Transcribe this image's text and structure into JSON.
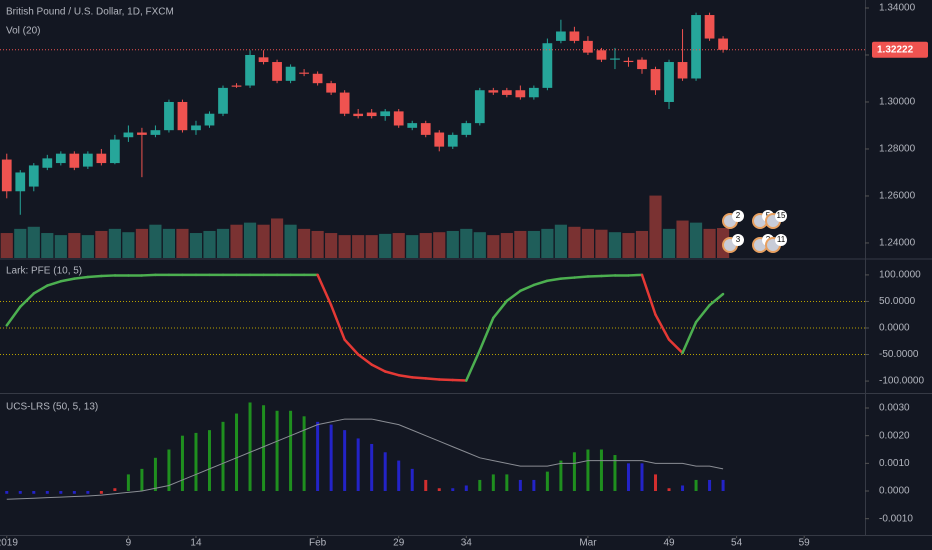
{
  "chart_data": [
    {
      "type": "candlestick",
      "title": "British Pound / U.S. Dollar, 1D, FXCM",
      "x": [
        0,
        1,
        2,
        3,
        4,
        5,
        6,
        7,
        8,
        9,
        10,
        11,
        12,
        13,
        14,
        15,
        16,
        17,
        18,
        19,
        20,
        21,
        22,
        23,
        24,
        25,
        26,
        27,
        28,
        29,
        30,
        31,
        32,
        33,
        34,
        35,
        36,
        37,
        38,
        39,
        40,
        41,
        42,
        43,
        44,
        45,
        46,
        47,
        48,
        49,
        50,
        51,
        52,
        53
      ],
      "open": [
        1.2755,
        1.262,
        1.264,
        1.272,
        1.274,
        1.278,
        1.2725,
        1.278,
        1.274,
        1.285,
        1.287,
        1.286,
        1.288,
        1.3,
        1.288,
        1.29,
        1.295,
        1.307,
        1.307,
        1.319,
        1.317,
        1.309,
        1.3125,
        1.312,
        1.308,
        1.304,
        1.295,
        1.2955,
        1.294,
        1.296,
        1.289,
        1.291,
        1.287,
        1.281,
        1.286,
        1.291,
        1.305,
        1.305,
        1.305,
        1.302,
        1.306,
        1.326,
        1.33,
        1.326,
        1.322,
        1.318,
        1.3175,
        1.318,
        1.314,
        1.3,
        1.317,
        1.31,
        1.337,
        1.327
      ],
      "high": [
        1.278,
        1.271,
        1.274,
        1.2775,
        1.279,
        1.279,
        1.279,
        1.28,
        1.286,
        1.29,
        1.289,
        1.29,
        1.301,
        1.301,
        1.292,
        1.296,
        1.307,
        1.308,
        1.322,
        1.322,
        1.318,
        1.316,
        1.314,
        1.313,
        1.309,
        1.305,
        1.297,
        1.297,
        1.297,
        1.297,
        1.292,
        1.292,
        1.288,
        1.287,
        1.292,
        1.306,
        1.306,
        1.306,
        1.307,
        1.307,
        1.327,
        1.335,
        1.332,
        1.328,
        1.323,
        1.323,
        1.319,
        1.319,
        1.315,
        1.318,
        1.331,
        1.338,
        1.338,
        1.328
      ],
      "low": [
        1.259,
        1.252,
        1.262,
        1.271,
        1.273,
        1.271,
        1.2715,
        1.273,
        1.2735,
        1.283,
        1.268,
        1.285,
        1.287,
        1.287,
        1.286,
        1.289,
        1.294,
        1.306,
        1.306,
        1.316,
        1.308,
        1.308,
        1.311,
        1.307,
        1.303,
        1.294,
        1.293,
        1.293,
        1.292,
        1.289,
        1.288,
        1.285,
        1.279,
        1.28,
        1.285,
        1.29,
        1.303,
        1.302,
        1.301,
        1.301,
        1.305,
        1.325,
        1.325,
        1.32,
        1.317,
        1.314,
        1.315,
        1.312,
        1.303,
        1.297,
        1.309,
        1.309,
        1.326,
        1.321
      ],
      "close": [
        1.262,
        1.27,
        1.273,
        1.276,
        1.278,
        1.272,
        1.278,
        1.274,
        1.284,
        1.287,
        1.286,
        1.288,
        1.3,
        1.288,
        1.29,
        1.295,
        1.306,
        1.3065,
        1.32,
        1.317,
        1.309,
        1.315,
        1.312,
        1.308,
        1.304,
        1.295,
        1.294,
        1.294,
        1.296,
        1.29,
        1.291,
        1.286,
        1.281,
        1.286,
        1.291,
        1.305,
        1.304,
        1.303,
        1.302,
        1.306,
        1.325,
        1.33,
        1.326,
        1.321,
        1.318,
        1.3185,
        1.317,
        1.314,
        1.305,
        1.317,
        1.31,
        1.337,
        1.327,
        1.3222
      ],
      "up_color": "#26a69a",
      "down_color": "#ef5350",
      "xlim": [
        -0.5,
        63.5
      ],
      "xticks": [
        {
          "value": 0,
          "label": "2019"
        },
        9,
        14,
        {
          "value": 23,
          "label": "Feb"
        },
        29,
        34,
        {
          "value": 43,
          "label": "Mar"
        },
        49,
        54,
        59
      ],
      "ylim": [
        1.2336,
        1.3434
      ],
      "yticks": [
        {
          "value": 1.24,
          "label": "1.24000"
        },
        {
          "value": 1.26,
          "label": "1.26000"
        },
        {
          "value": 1.28,
          "label": "1.28000"
        },
        {
          "value": 1.3,
          "label": "1.30000"
        },
        {
          "value": 1.32,
          "label": "1.32000"
        },
        {
          "value": 1.34,
          "label": "1.34000"
        }
      ],
      "last_price": {
        "value": 1.32222,
        "label": "1.32222"
      },
      "volume": {
        "title": "Vol (20)",
        "ylim": [
          0,
          620
        ],
        "up_color": "#1f5e5a",
        "down_color": "#7a3232",
        "values": [
          60,
          70,
          75,
          60,
          55,
          60,
          55,
          65,
          70,
          62,
          70,
          80,
          70,
          70,
          60,
          65,
          70,
          80,
          85,
          80,
          95,
          80,
          70,
          65,
          60,
          55,
          55,
          55,
          58,
          60,
          55,
          60,
          62,
          65,
          70,
          62,
          55,
          60,
          65,
          65,
          70,
          80,
          75,
          70,
          68,
          62,
          60,
          65,
          150,
          70,
          90,
          85,
          70,
          72
        ]
      },
      "events": [
        "2",
        "5",
        "15",
        "3",
        "2",
        "11"
      ]
    },
    {
      "type": "line",
      "title": "Lark: PFE (10, 5)",
      "values": [
        5,
        40,
        65,
        80,
        88,
        93,
        96,
        98,
        99,
        99,
        99,
        100,
        100,
        100,
        100,
        100,
        100,
        100,
        100,
        100,
        100,
        100,
        100,
        100,
        43,
        -22,
        -50,
        -69,
        -82,
        -89,
        -93,
        -95,
        -97,
        -98,
        -99,
        -42,
        19,
        51,
        70,
        81,
        89,
        93,
        95,
        97,
        98,
        99,
        99,
        100,
        25,
        -22,
        -47,
        11,
        43,
        64
      ],
      "up_color": "#4caf50",
      "down_color": "#e53935",
      "levels": [
        50,
        0,
        -50
      ],
      "level_color": "#b8a200",
      "ylim": [
        -120.6,
        126.2
      ],
      "yticks": [
        {
          "value": 100,
          "label": "100.0000"
        },
        {
          "value": 50,
          "label": "50.0000"
        },
        {
          "value": 0,
          "label": "0.0000"
        },
        {
          "value": -50,
          "label": "-50.0000"
        },
        {
          "value": -100,
          "label": "-100.0000"
        }
      ]
    },
    {
      "type": "bar",
      "title": "UCS-LRS (50, 5, 13)",
      "values": [
        -0.0001,
        -0.0001,
        -0.0001,
        -0.0001,
        -0.0001,
        -0.0001,
        -0.0001,
        -0.0001,
        0.0001,
        0.0006,
        0.0008,
        0.0012,
        0.0015,
        0.002,
        0.0021,
        0.0022,
        0.0025,
        0.0028,
        0.0032,
        0.0031,
        0.0029,
        0.0029,
        0.0027,
        0.0025,
        0.0024,
        0.0022,
        0.0019,
        0.0017,
        0.0014,
        0.0011,
        0.0008,
        0.0004,
        0.0001,
        0.0001,
        0.0002,
        0.0004,
        0.0006,
        0.0006,
        0.0004,
        0.0004,
        0.0007,
        0.0011,
        0.0014,
        0.0015,
        0.0015,
        0.0013,
        0.001,
        0.001,
        0.0006,
        0.0001,
        0.0002,
        0.0004,
        0.0004,
        0.0004
      ],
      "colors": [
        "#2323c8",
        "#2323c8",
        "#2323c8",
        "#2323c8",
        "#2323c8",
        "#2323c8",
        "#2323c8",
        "#d32f2f",
        "#d32f2f",
        "#1f8f1f",
        "#1f8f1f",
        "#1f8f1f",
        "#1f8f1f",
        "#1f8f1f",
        "#1f8f1f",
        "#1f8f1f",
        "#1f8f1f",
        "#1f8f1f",
        "#1f8f1f",
        "#1f8f1f",
        "#1f8f1f",
        "#1f8f1f",
        "#1f8f1f",
        "#2323c8",
        "#2323c8",
        "#2323c8",
        "#2323c8",
        "#2323c8",
        "#2323c8",
        "#2323c8",
        "#2323c8",
        "#d32f2f",
        "#d32f2f",
        "#2323c8",
        "#2323c8",
        "#1f8f1f",
        "#1f8f1f",
        "#1f8f1f",
        "#2323c8",
        "#2323c8",
        "#1f8f1f",
        "#1f8f1f",
        "#1f8f1f",
        "#1f8f1f",
        "#1f8f1f",
        "#1f8f1f",
        "#2323c8",
        "#2323c8",
        "#d32f2f",
        "#d32f2f",
        "#2323c8",
        "#1f8f1f",
        "#2323c8",
        "#2323c8"
      ],
      "signal": [
        -0.0003,
        -0.00028,
        -0.00026,
        -0.00024,
        -0.00022,
        -0.0002,
        -0.00018,
        -0.00015,
        -0.0001,
        -5e-05,
        0.0,
        0.0001,
        0.0002,
        0.0004,
        0.0006,
        0.0008,
        0.001,
        0.0012,
        0.0014,
        0.0016,
        0.0018,
        0.002,
        0.0022,
        0.0024,
        0.0025,
        0.0026,
        0.0026,
        0.0026,
        0.0025,
        0.0024,
        0.0022,
        0.002,
        0.0018,
        0.0016,
        0.0014,
        0.0012,
        0.0011,
        0.001,
        0.0009,
        0.0009,
        0.0009,
        0.001,
        0.001,
        0.0011,
        0.0011,
        0.0011,
        0.0011,
        0.0011,
        0.001,
        0.001,
        0.001,
        0.0009,
        0.0009,
        0.0008
      ],
      "signal_color": "#8a8d94",
      "ylim": [
        -0.00159,
        0.00347
      ],
      "yticks": [
        {
          "value": 0.003,
          "label": "0.0030"
        },
        {
          "value": 0.002,
          "label": "0.0020"
        },
        {
          "value": 0.001,
          "label": "0.0010"
        },
        {
          "value": 0,
          "label": "0.0000"
        },
        {
          "value": -0.001,
          "label": "-0.0010"
        }
      ]
    }
  ]
}
